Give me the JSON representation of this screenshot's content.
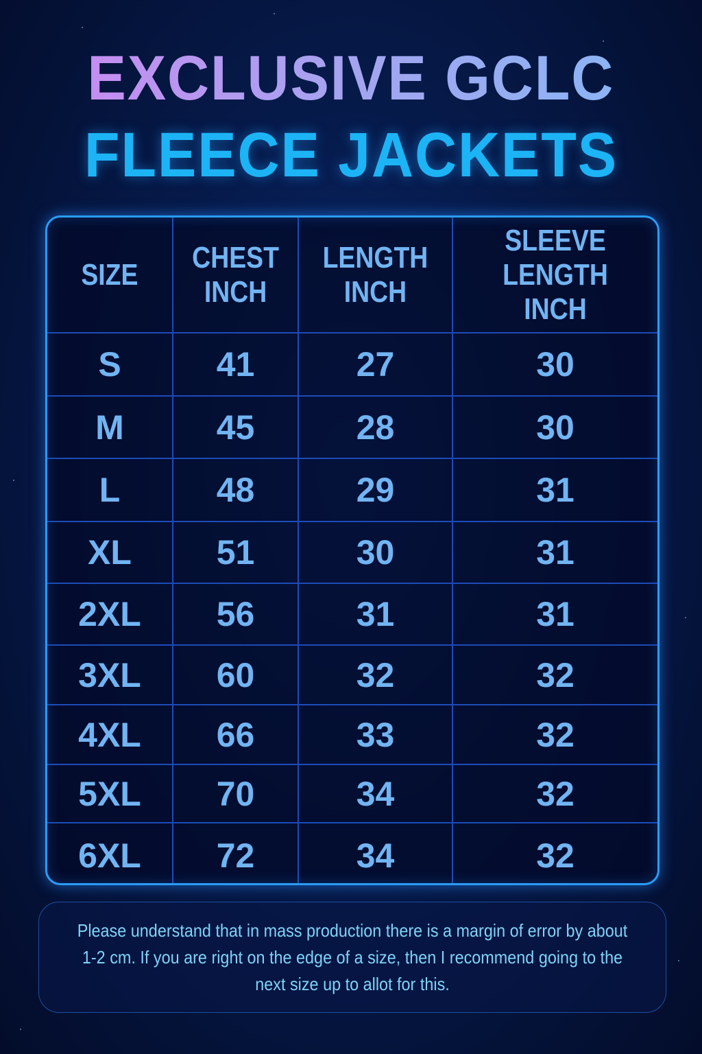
{
  "title": {
    "line1": "EXCLUSIVE GCLC",
    "line2": "FLEECE JACKETS"
  },
  "colors": {
    "title_line2": "#1db4f6",
    "table_border": "#2a9cf6",
    "cell_text": "#72b4f2",
    "note_text": "#80d2f6"
  },
  "table": {
    "headers": [
      "SIZE",
      "CHEST\nINCH",
      "LENGTH\nINCH",
      "SLEEVE\nLENGTH INCH"
    ],
    "rows": [
      [
        "S",
        "41",
        "27",
        "30"
      ],
      [
        "M",
        "45",
        "28",
        "30"
      ],
      [
        "L",
        "48",
        "29",
        "31"
      ],
      [
        "XL",
        "51",
        "30",
        "31"
      ],
      [
        "2XL",
        "56",
        "31",
        "31"
      ],
      [
        "3XL",
        "60",
        "32",
        "32"
      ],
      [
        "4XL",
        "66",
        "33",
        "32"
      ],
      [
        "5XL",
        "70",
        "34",
        "32"
      ],
      [
        "6XL",
        "72",
        "34",
        "32"
      ]
    ]
  },
  "note": "Please understand that in mass production there is a margin of error by about 1-2 cm. If you are right on the edge of a size, then I recommend going to the next size up to allot for this."
}
